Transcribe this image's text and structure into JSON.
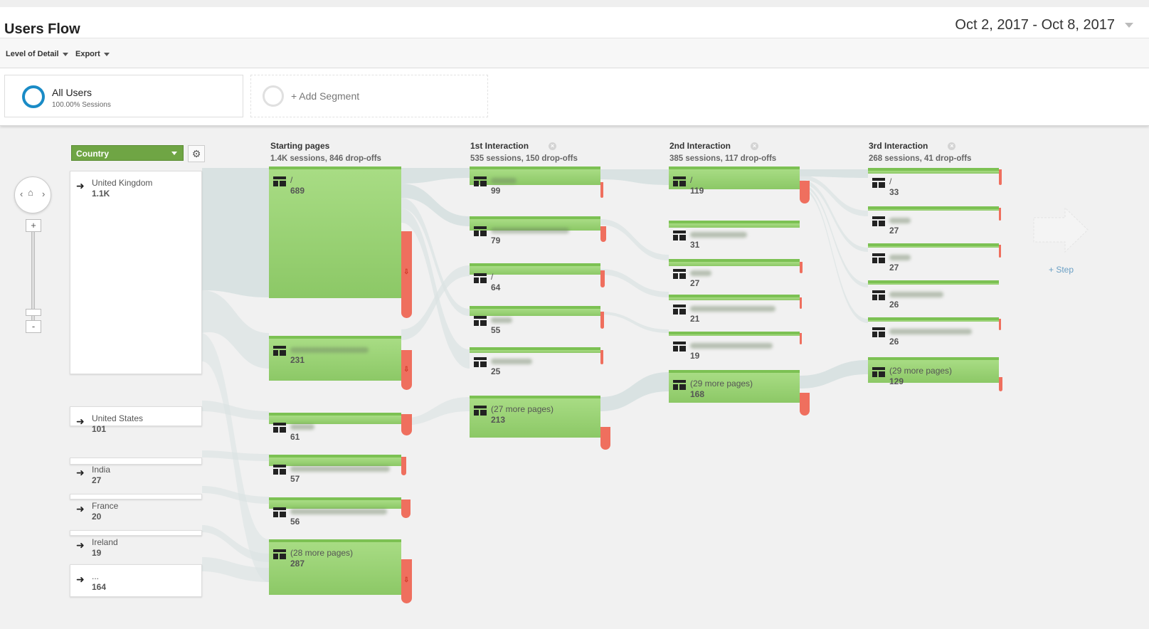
{
  "header": {
    "title": "Users Flow",
    "date_range": "Oct 2, 2017 - Oct 8, 2017"
  },
  "toolbar": {
    "level_of_detail": "Level of Detail",
    "export": "Export"
  },
  "segments": {
    "active": {
      "name": "All Users",
      "detail": "100.00% Sessions"
    },
    "add_label": "+ Add Segment"
  },
  "dimension": {
    "selected": "Country"
  },
  "columns": [
    {
      "title": "Starting pages",
      "summary": "1.4K sessions, 846 drop-offs"
    },
    {
      "title": "1st Interaction",
      "summary": "535 sessions, 150 drop-offs"
    },
    {
      "title": "2nd Interaction",
      "summary": "385 sessions, 117 drop-offs"
    },
    {
      "title": "3rd Interaction",
      "summary": "268 sessions, 41 drop-offs"
    }
  ],
  "countries": [
    {
      "name": "United Kingdom",
      "value": "1.1K"
    },
    {
      "name": "United States",
      "value": "101"
    },
    {
      "name": "India",
      "value": "27"
    },
    {
      "name": "France",
      "value": "20"
    },
    {
      "name": "Ireland",
      "value": "19"
    },
    {
      "name": "...",
      "value": "164"
    }
  ],
  "starting_pages": [
    {
      "name": "/",
      "value": "689"
    },
    {
      "name": "",
      "value": "231"
    },
    {
      "name": "",
      "value": "61"
    },
    {
      "name": "",
      "value": "57"
    },
    {
      "name": "",
      "value": "56"
    },
    {
      "name": "(28 more pages)",
      "value": "287"
    }
  ],
  "interaction1": [
    {
      "name": "",
      "value": "99"
    },
    {
      "name": "",
      "value": "79"
    },
    {
      "name": "/",
      "value": "64"
    },
    {
      "name": "",
      "value": "55"
    },
    {
      "name": "",
      "value": "25"
    },
    {
      "name": "(27 more pages)",
      "value": "213"
    }
  ],
  "interaction2": [
    {
      "name": "/",
      "value": "119"
    },
    {
      "name": "",
      "value": "31"
    },
    {
      "name": "",
      "value": "27"
    },
    {
      "name": "",
      "value": "21"
    },
    {
      "name": "",
      "value": "19"
    },
    {
      "name": "(29 more pages)",
      "value": "168"
    }
  ],
  "interaction3": [
    {
      "name": "/",
      "value": "33"
    },
    {
      "name": "",
      "value": "27"
    },
    {
      "name": "",
      "value": "27"
    },
    {
      "name": "",
      "value": "26"
    },
    {
      "name": "",
      "value": "26"
    },
    {
      "name": "(29 more pages)",
      "value": "129"
    }
  ],
  "add_step": "+ Step",
  "colors": {
    "node_green": "#8cc866",
    "dropoff_red": "#ef6f5e",
    "flow_grey": "#d5e0e0",
    "segment_blue": "#1a8bc6",
    "dimension_green": "#6fa544"
  }
}
